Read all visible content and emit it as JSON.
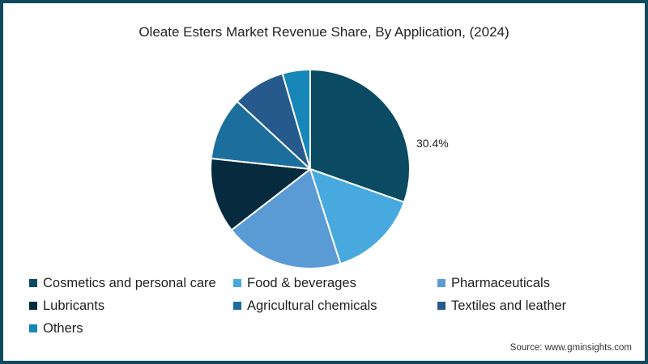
{
  "frame": {
    "border_color": "#0d4a5e"
  },
  "title": "Oleate Esters Market Revenue Share, By Application, (2024)",
  "highlight_label": "30.4%",
  "source": "Source: www.gminsights.com",
  "legend": [
    {
      "label": "Cosmetics and personal care",
      "color": "#0b4a63"
    },
    {
      "label": "Food & beverages",
      "color": "#48a9de"
    },
    {
      "label": "Pharmaceuticals",
      "color": "#5b9bd5"
    },
    {
      "label": "Lubricants",
      "color": "#062a3e"
    },
    {
      "label": "Agricultural chemicals",
      "color": "#1c6f9c"
    },
    {
      "label": "Textiles and leather",
      "color": "#265a8c"
    },
    {
      "label": "Others",
      "color": "#1687b8"
    }
  ],
  "chart_data": {
    "type": "pie",
    "title": "Oleate Esters Market Revenue Share, By Application, (2024)",
    "categories": [
      "Cosmetics and personal care",
      "Food & beverages",
      "Pharmaceuticals",
      "Lubricants",
      "Agricultural chemicals",
      "Textiles and leather",
      "Others"
    ],
    "values": [
      30.4,
      14.7,
      19.4,
      12.2,
      10.2,
      8.6,
      4.5
    ],
    "colors": [
      "#0b4a63",
      "#48a9de",
      "#5b9bd5",
      "#062a3e",
      "#1c6f9c",
      "#265a8c",
      "#1687b8"
    ],
    "labeled_values": {
      "Cosmetics and personal care": "30.4%"
    },
    "unit": "%",
    "start_angle": "12 o'clock, clockwise",
    "legend_position": "bottom",
    "source": "www.gminsights.com"
  }
}
